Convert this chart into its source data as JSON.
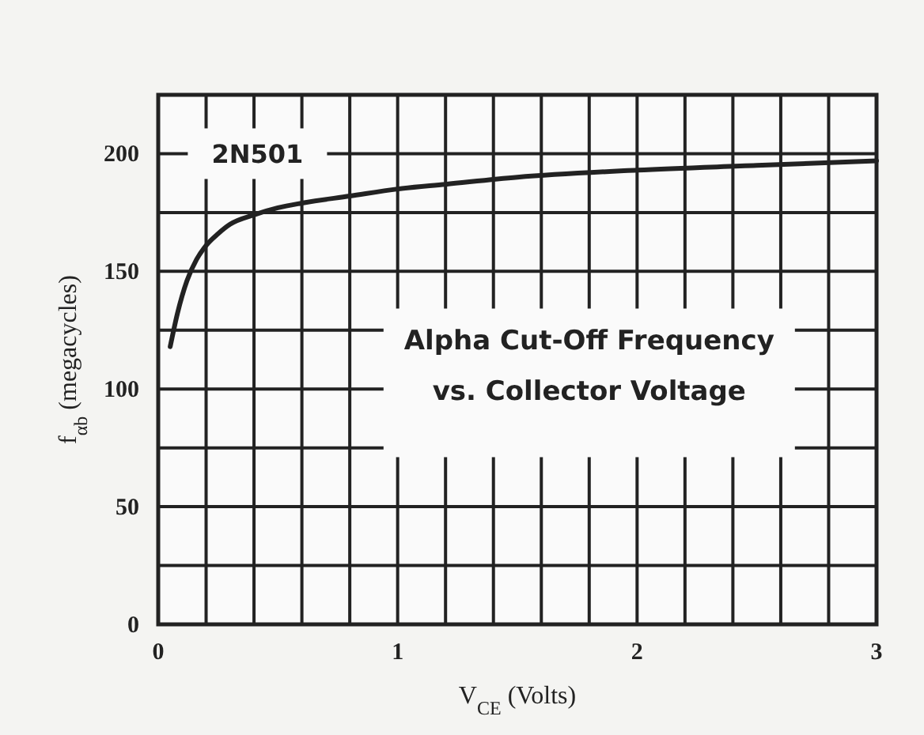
{
  "chart_data": {
    "type": "line",
    "title": "Alpha Cut-Off Frequency vs. Collector Voltage",
    "xlabel": "V$_{CE}$ (Volts)",
    "ylabel": "f$_{αb}$ (megacycles)",
    "x": [
      0.05,
      0.08,
      0.12,
      0.16,
      0.2,
      0.25,
      0.3,
      0.4,
      0.5,
      0.6,
      0.8,
      1.0,
      1.2,
      1.5,
      2.0,
      2.5,
      3.0
    ],
    "series": [
      {
        "name": "2N501",
        "color": "#222222",
        "values": [
          118,
          132,
          146,
          155,
          161,
          166,
          170,
          174,
          177,
          179,
          182,
          185,
          187,
          190,
          193,
          195,
          197
        ]
      }
    ],
    "xlim": [
      0,
      3
    ],
    "ylim": [
      0,
      225
    ],
    "xticks": [
      0,
      {
        "value": 0.2,
        "label": null
      },
      {
        "value": 0.4,
        "label": null
      },
      {
        "value": 0.6,
        "label": null
      },
      {
        "value": 0.8,
        "label": null
      },
      1,
      {
        "value": 1.2,
        "label": null
      },
      {
        "value": 1.4,
        "label": null
      },
      {
        "value": 1.6,
        "label": null
      },
      {
        "value": 1.8,
        "label": null
      },
      2,
      {
        "value": 2.2,
        "label": null
      },
      {
        "value": 2.4,
        "label": null
      },
      {
        "value": 2.6,
        "label": null
      },
      {
        "value": 2.8,
        "label": null
      },
      3
    ],
    "yticks": [
      0,
      {
        "value": 25,
        "label": null
      },
      50,
      {
        "value": 75,
        "label": null
      },
      100,
      {
        "value": 125,
        "label": null
      },
      150,
      {
        "value": 175,
        "label": null
      },
      200,
      {
        "value": 225,
        "label": null
      }
    ],
    "grid": true,
    "line_style": "solid",
    "marker": "none"
  }
}
